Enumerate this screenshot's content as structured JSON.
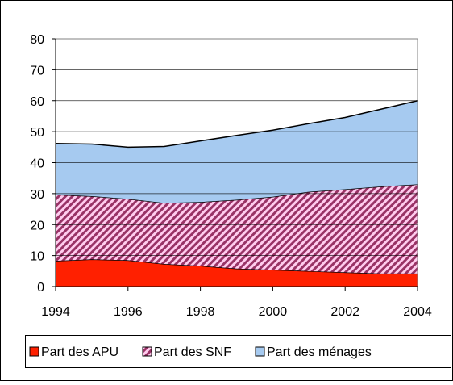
{
  "chart_data": {
    "type": "stacked-area",
    "x": [
      1994,
      1995,
      1996,
      1997,
      1998,
      1999,
      2000,
      2001,
      2002,
      2003,
      2004
    ],
    "xlim": [
      1994,
      2004
    ],
    "xticks": [
      1994,
      1996,
      1998,
      2000,
      2002,
      2004
    ],
    "ylim": [
      0,
      80
    ],
    "yticks": [
      0,
      10,
      20,
      30,
      40,
      50,
      60,
      70,
      80
    ],
    "grid": true,
    "legend": "bottom",
    "series": [
      {
        "name": "Part des APU",
        "color": "#ff2000",
        "values": [
          8.3,
          8.8,
          8.5,
          7.3,
          6.7,
          5.8,
          5.4,
          5.0,
          4.6,
          4.2,
          4.2
        ]
      },
      {
        "name": "Part des SNF",
        "color": "#993366",
        "values": [
          21.4,
          20.4,
          19.8,
          19.7,
          20.6,
          22.2,
          23.6,
          25.6,
          26.8,
          28.1,
          28.8
        ]
      },
      {
        "name": "Part des ménages",
        "color": "#a6caf0",
        "values": [
          16.5,
          16.8,
          16.7,
          18.2,
          19.7,
          20.8,
          21.5,
          22.0,
          23.2,
          25.0,
          27.0
        ]
      }
    ]
  }
}
